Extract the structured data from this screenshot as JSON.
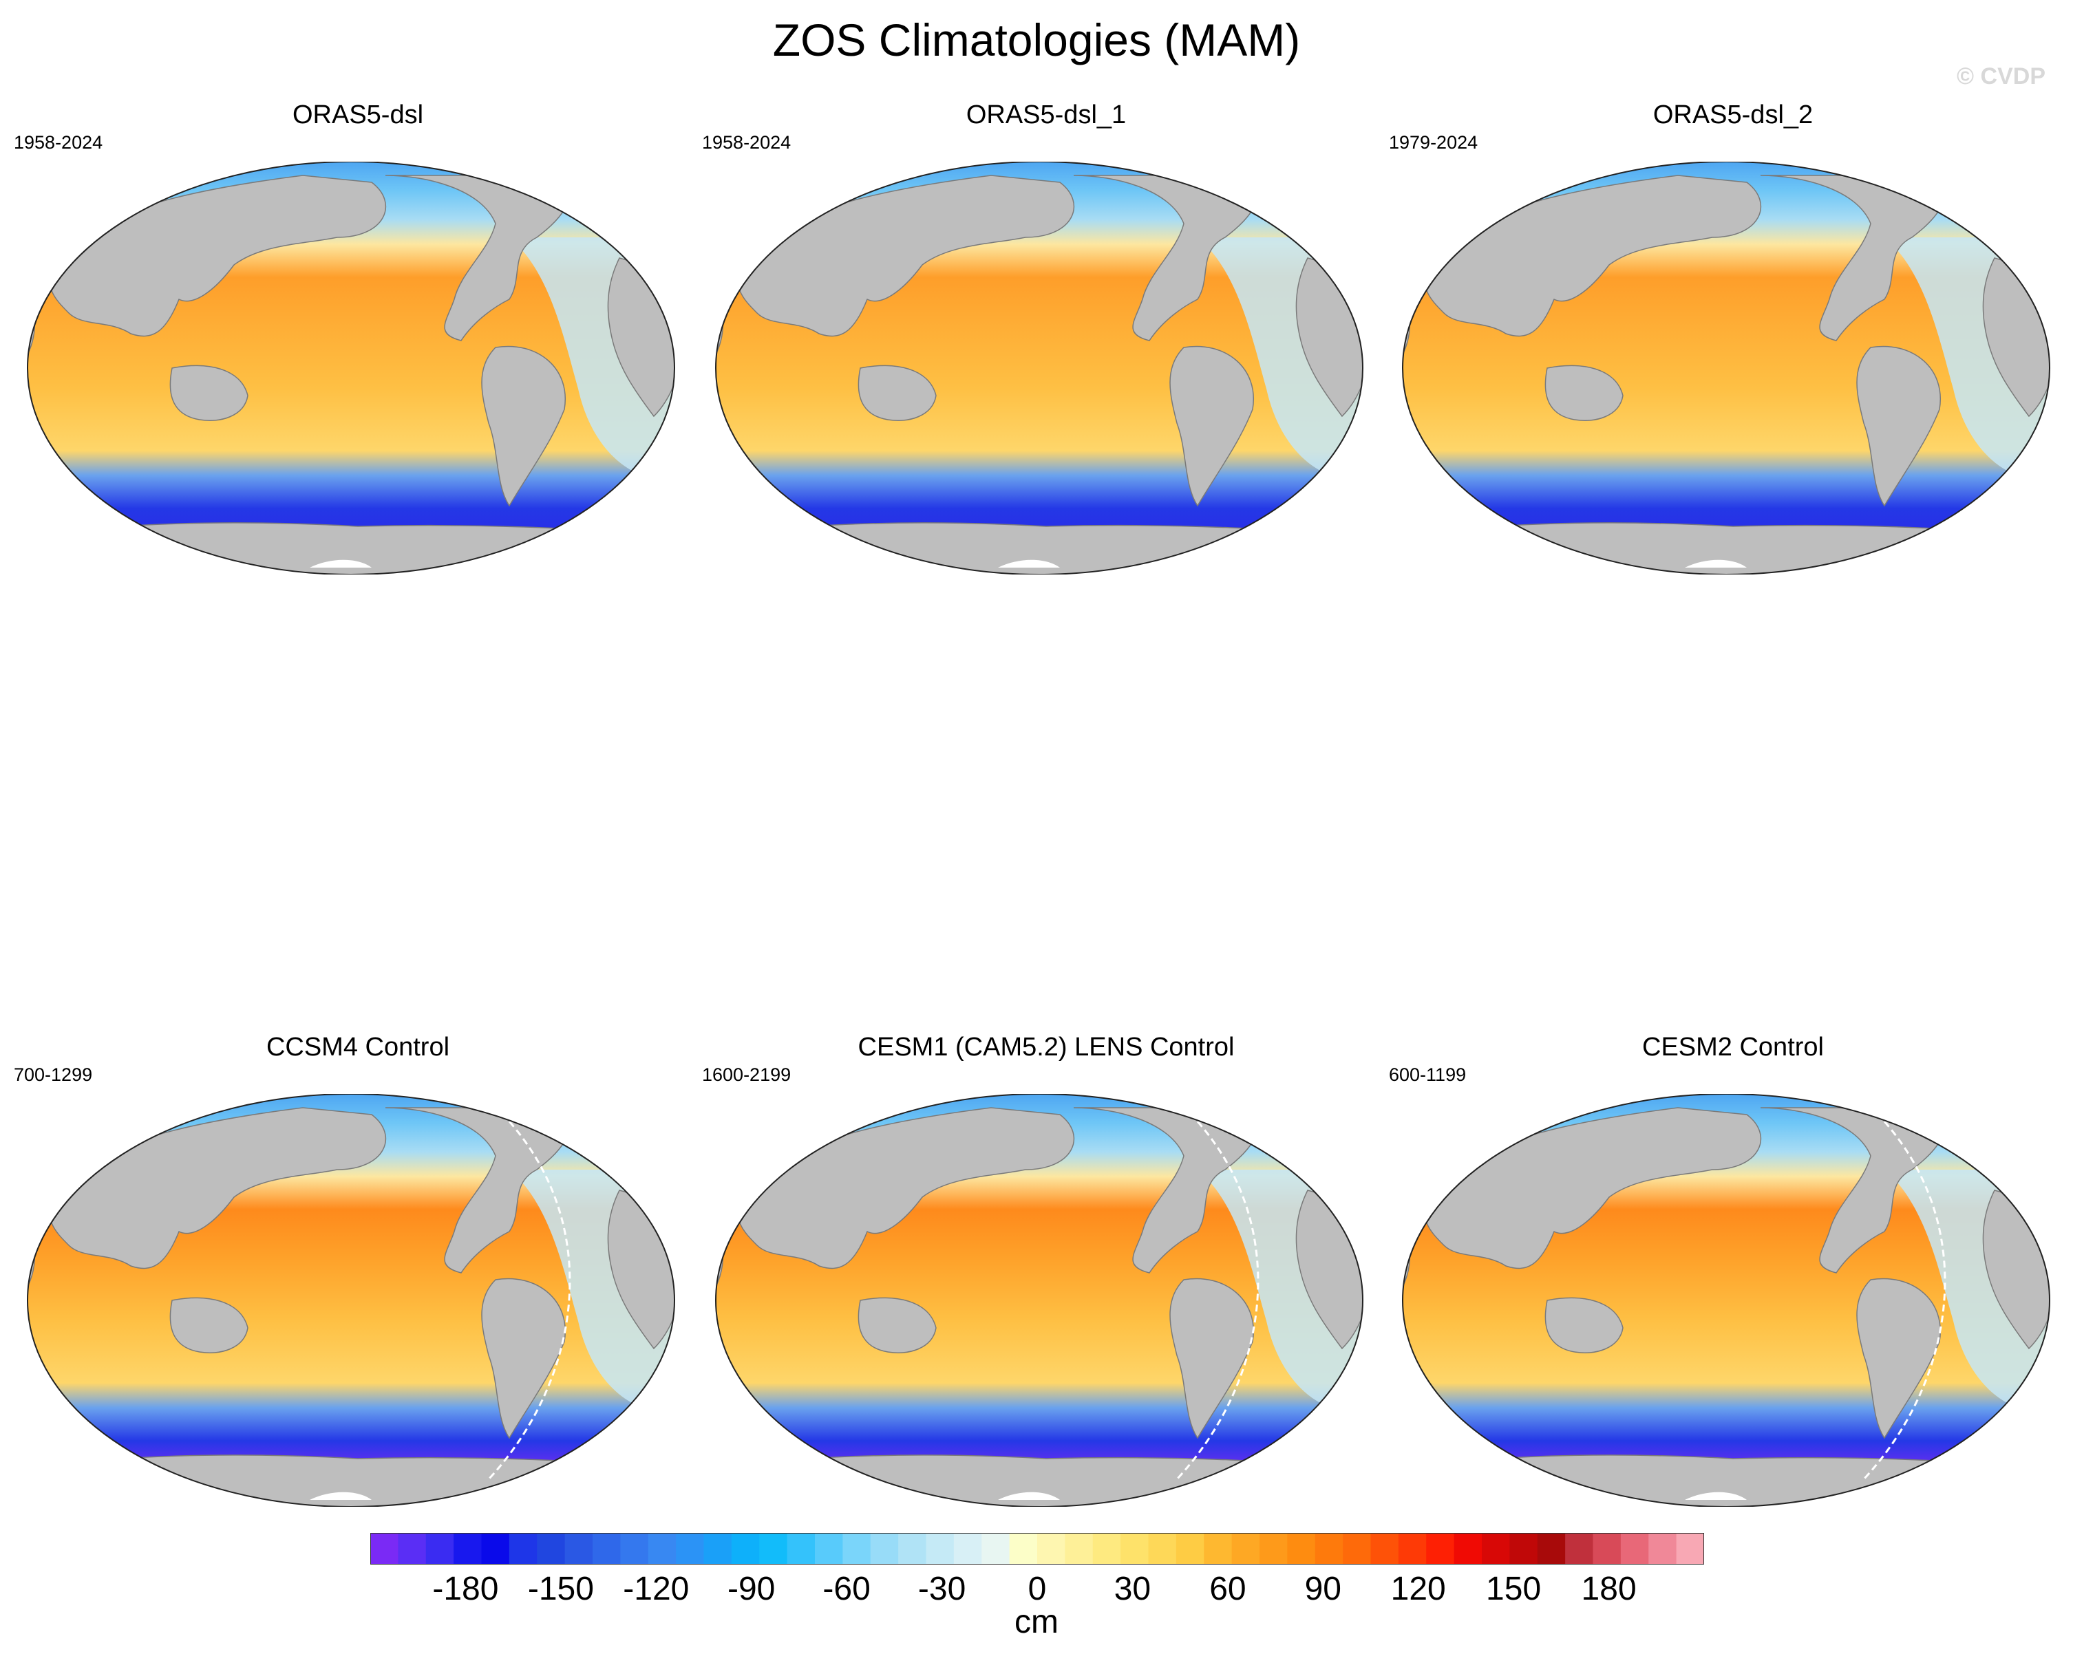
{
  "figure": {
    "title": "ZOS Climatologies (MAM)",
    "watermark": "© CVDP"
  },
  "panels": [
    {
      "title": "ORAS5-dsl",
      "years": "1958-2024",
      "model": false
    },
    {
      "title": "ORAS5-dsl_1",
      "years": "1958-2024",
      "model": false
    },
    {
      "title": "ORAS5-dsl_2",
      "years": "1979-2024",
      "model": false
    },
    {
      "title": "CCSM4 Control",
      "years": "700-1299",
      "model": true
    },
    {
      "title": "CESM1 (CAM5.2) LENS Control",
      "years": "1600-2199",
      "model": true
    },
    {
      "title": "CESM2 Control",
      "years": "600-1199",
      "model": true
    }
  ],
  "colorbar": {
    "unit": "cm",
    "tick_labels": [
      "-180",
      "-150",
      "-120",
      "-90",
      "-60",
      "-30",
      "0",
      "30",
      "60",
      "90",
      "120",
      "150",
      "180"
    ],
    "colors": [
      "#7a2af5",
      "#5a2ef5",
      "#3a2cf2",
      "#1818ee",
      "#0a0aea",
      "#1e36e8",
      "#2046e0",
      "#2a58e4",
      "#2f68ea",
      "#3478ee",
      "#3888f2",
      "#2b93f6",
      "#1aa0f8",
      "#0eb0fa",
      "#12bcfa",
      "#34c2fb",
      "#58cbfb",
      "#7ad5fa",
      "#98dcf8",
      "#b0e3f6",
      "#c5eaf6",
      "#d8f0f6",
      "#e8f6f2",
      "#fcfec8",
      "#fef6b0",
      "#fef098",
      "#feea80",
      "#fee26a",
      "#fed858",
      "#fecc44",
      "#feb830",
      "#fea824",
      "#fe9a1a",
      "#fe8c10",
      "#fe7a0c",
      "#fe6a0a",
      "#fe5208",
      "#fe3a06",
      "#fe2004",
      "#f00a04",
      "#d80806",
      "#c00808",
      "#a80a0a",
      "#c0303c",
      "#d84a58",
      "#e86878",
      "#f08898",
      "#f8a8b4"
    ],
    "range": [
      -210,
      210
    ]
  }
}
